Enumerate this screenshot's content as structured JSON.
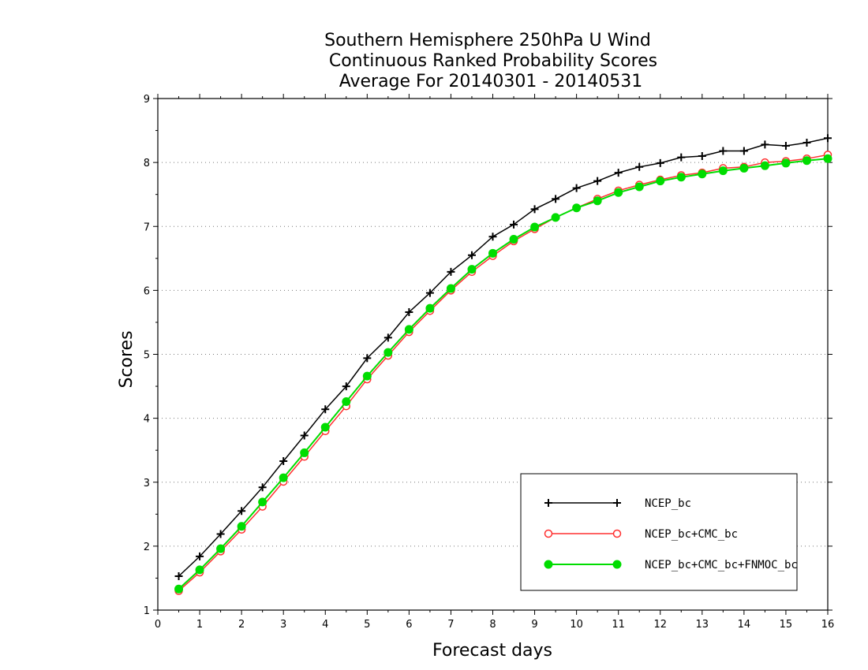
{
  "chart_data": {
    "type": "line",
    "title_lines": [
      "Southern Hemisphere 250hPa U Wind",
      "Continuous Ranked Probability Scores",
      "Average For 20140301 - 20140531"
    ],
    "xlabel": "Forecast days",
    "ylabel": "Scores",
    "xlim": [
      0,
      16
    ],
    "ylim": [
      1,
      9
    ],
    "x_ticks": [
      0,
      1,
      2,
      3,
      4,
      5,
      6,
      7,
      8,
      9,
      10,
      11,
      12,
      13,
      14,
      15,
      16
    ],
    "y_ticks": [
      1,
      2,
      3,
      4,
      5,
      6,
      7,
      8,
      9
    ],
    "grid": "horizontal dotted",
    "legend_position": "bottom-right",
    "x": [
      0.5,
      1,
      1.5,
      2,
      2.5,
      3,
      3.5,
      4,
      4.5,
      5,
      5.5,
      6,
      6.5,
      7,
      7.5,
      8,
      8.5,
      9,
      9.5,
      10,
      10.5,
      11,
      11.5,
      12,
      12.5,
      13,
      13.5,
      14,
      14.5,
      15,
      15.5,
      16
    ],
    "series": [
      {
        "name": "NCEP_bc",
        "color": "#000000",
        "marker": "plus",
        "values": [
          1.53,
          1.84,
          2.19,
          2.55,
          2.92,
          3.33,
          3.73,
          4.14,
          4.5,
          4.94,
          5.26,
          5.66,
          5.96,
          6.29,
          6.55,
          6.84,
          7.03,
          7.27,
          7.43,
          7.6,
          7.71,
          7.84,
          7.93,
          7.99,
          8.08,
          8.1,
          8.18,
          8.18,
          8.28,
          8.26,
          8.31,
          8.38
        ]
      },
      {
        "name": "NCEP_bc+CMC_bc",
        "color": "#ff3030",
        "marker": "open-circle",
        "values": [
          1.3,
          1.59,
          1.92,
          2.26,
          2.62,
          3.01,
          3.4,
          3.8,
          4.19,
          4.61,
          4.98,
          5.35,
          5.68,
          6.0,
          6.29,
          6.54,
          6.77,
          6.96,
          7.14,
          7.29,
          7.43,
          7.56,
          7.65,
          7.73,
          7.8,
          7.84,
          7.91,
          7.93,
          8.0,
          8.02,
          8.06,
          8.12
        ]
      },
      {
        "name": "NCEP_bc+CMC_bc+FNMOC_bc",
        "color": "#00dd00",
        "marker": "filled-circle",
        "values": [
          1.33,
          1.63,
          1.96,
          2.31,
          2.69,
          3.07,
          3.46,
          3.86,
          4.26,
          4.66,
          5.03,
          5.39,
          5.72,
          6.03,
          6.33,
          6.58,
          6.8,
          6.99,
          7.14,
          7.29,
          7.4,
          7.53,
          7.62,
          7.71,
          7.77,
          7.82,
          7.87,
          7.91,
          7.95,
          7.99,
          8.03,
          8.06
        ]
      }
    ]
  }
}
